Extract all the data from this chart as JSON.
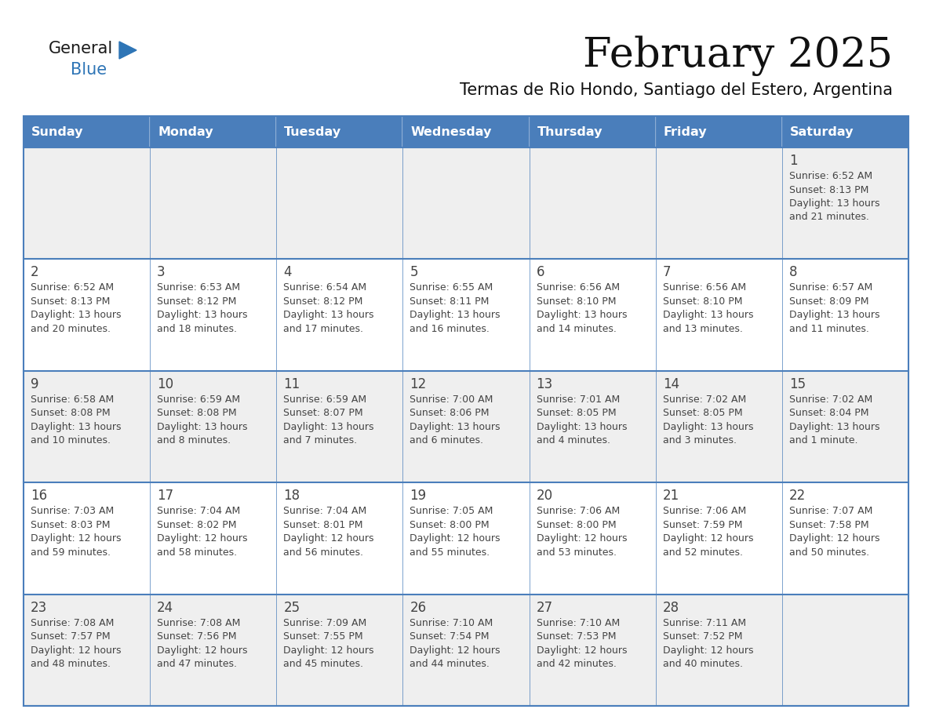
{
  "title": "February 2025",
  "subtitle": "Termas de Rio Hondo, Santiago del Estero, Argentina",
  "days_of_week": [
    "Sunday",
    "Monday",
    "Tuesday",
    "Wednesday",
    "Thursday",
    "Friday",
    "Saturday"
  ],
  "header_bg": "#4A7EBB",
  "header_text_color": "#FFFFFF",
  "cell_bg_odd": "#EFEFEF",
  "cell_bg_even": "#FFFFFF",
  "border_color": "#4A7EBB",
  "text_color": "#444444",
  "title_color": "#111111",
  "logo_general_color": "#1a1a1a",
  "logo_blue_color": "#2E75B6",
  "calendar_data": [
    [
      "",
      "",
      "",
      "",
      "",
      "",
      "1\nSunrise: 6:52 AM\nSunset: 8:13 PM\nDaylight: 13 hours\nand 21 minutes."
    ],
    [
      "2\nSunrise: 6:52 AM\nSunset: 8:13 PM\nDaylight: 13 hours\nand 20 minutes.",
      "3\nSunrise: 6:53 AM\nSunset: 8:12 PM\nDaylight: 13 hours\nand 18 minutes.",
      "4\nSunrise: 6:54 AM\nSunset: 8:12 PM\nDaylight: 13 hours\nand 17 minutes.",
      "5\nSunrise: 6:55 AM\nSunset: 8:11 PM\nDaylight: 13 hours\nand 16 minutes.",
      "6\nSunrise: 6:56 AM\nSunset: 8:10 PM\nDaylight: 13 hours\nand 14 minutes.",
      "7\nSunrise: 6:56 AM\nSunset: 8:10 PM\nDaylight: 13 hours\nand 13 minutes.",
      "8\nSunrise: 6:57 AM\nSunset: 8:09 PM\nDaylight: 13 hours\nand 11 minutes."
    ],
    [
      "9\nSunrise: 6:58 AM\nSunset: 8:08 PM\nDaylight: 13 hours\nand 10 minutes.",
      "10\nSunrise: 6:59 AM\nSunset: 8:08 PM\nDaylight: 13 hours\nand 8 minutes.",
      "11\nSunrise: 6:59 AM\nSunset: 8:07 PM\nDaylight: 13 hours\nand 7 minutes.",
      "12\nSunrise: 7:00 AM\nSunset: 8:06 PM\nDaylight: 13 hours\nand 6 minutes.",
      "13\nSunrise: 7:01 AM\nSunset: 8:05 PM\nDaylight: 13 hours\nand 4 minutes.",
      "14\nSunrise: 7:02 AM\nSunset: 8:05 PM\nDaylight: 13 hours\nand 3 minutes.",
      "15\nSunrise: 7:02 AM\nSunset: 8:04 PM\nDaylight: 13 hours\nand 1 minute."
    ],
    [
      "16\nSunrise: 7:03 AM\nSunset: 8:03 PM\nDaylight: 12 hours\nand 59 minutes.",
      "17\nSunrise: 7:04 AM\nSunset: 8:02 PM\nDaylight: 12 hours\nand 58 minutes.",
      "18\nSunrise: 7:04 AM\nSunset: 8:01 PM\nDaylight: 12 hours\nand 56 minutes.",
      "19\nSunrise: 7:05 AM\nSunset: 8:00 PM\nDaylight: 12 hours\nand 55 minutes.",
      "20\nSunrise: 7:06 AM\nSunset: 8:00 PM\nDaylight: 12 hours\nand 53 minutes.",
      "21\nSunrise: 7:06 AM\nSunset: 7:59 PM\nDaylight: 12 hours\nand 52 minutes.",
      "22\nSunrise: 7:07 AM\nSunset: 7:58 PM\nDaylight: 12 hours\nand 50 minutes."
    ],
    [
      "23\nSunrise: 7:08 AM\nSunset: 7:57 PM\nDaylight: 12 hours\nand 48 minutes.",
      "24\nSunrise: 7:08 AM\nSunset: 7:56 PM\nDaylight: 12 hours\nand 47 minutes.",
      "25\nSunrise: 7:09 AM\nSunset: 7:55 PM\nDaylight: 12 hours\nand 45 minutes.",
      "26\nSunrise: 7:10 AM\nSunset: 7:54 PM\nDaylight: 12 hours\nand 44 minutes.",
      "27\nSunrise: 7:10 AM\nSunset: 7:53 PM\nDaylight: 12 hours\nand 42 minutes.",
      "28\nSunrise: 7:11 AM\nSunset: 7:52 PM\nDaylight: 12 hours\nand 40 minutes.",
      ""
    ]
  ]
}
